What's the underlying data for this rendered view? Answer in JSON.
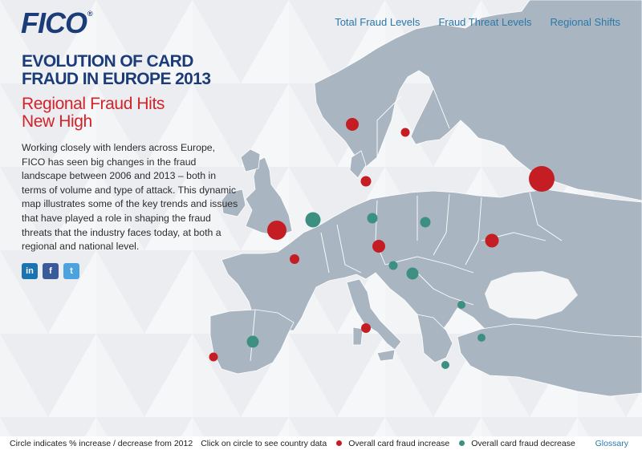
{
  "logo": {
    "text": "FICO",
    "tm": "®"
  },
  "nav": {
    "total": "Total Fraud Levels",
    "threat": "Fraud Threat Levels",
    "regional": "Regional Shifts"
  },
  "headline": {
    "title_line1": "EVOLUTION OF CARD",
    "title_line2": "FRAUD IN EUROPE 2013",
    "subtitle_line1": "Regional Fraud Hits",
    "subtitle_line2": "New High"
  },
  "intro": "Working closely with lenders across Europe, FICO has seen big changes in the fraud landscape between 2006 and 2013 – both in terms of volume and type of attack. This dynamic map illustrates some of the key trends and issues that have played a role in shaping the fraud threats that the industry faces today, at both a regional and national level.",
  "social": {
    "linkedin": "in",
    "facebook": "f",
    "twitter": "t"
  },
  "footer": {
    "circle_note": "Circle indicates % increase / decrease from 2012",
    "click_note": "Click on circle to see country data",
    "increase_label": "Overall card fraud increase",
    "decrease_label": "Overall card fraud decrease",
    "glossary": "Glossary"
  },
  "colors": {
    "increase": "#c41e24",
    "decrease": "#3d8f82",
    "land": "#a9b6c2",
    "brand": "#1b3c79",
    "link": "#2a78a8"
  }
}
